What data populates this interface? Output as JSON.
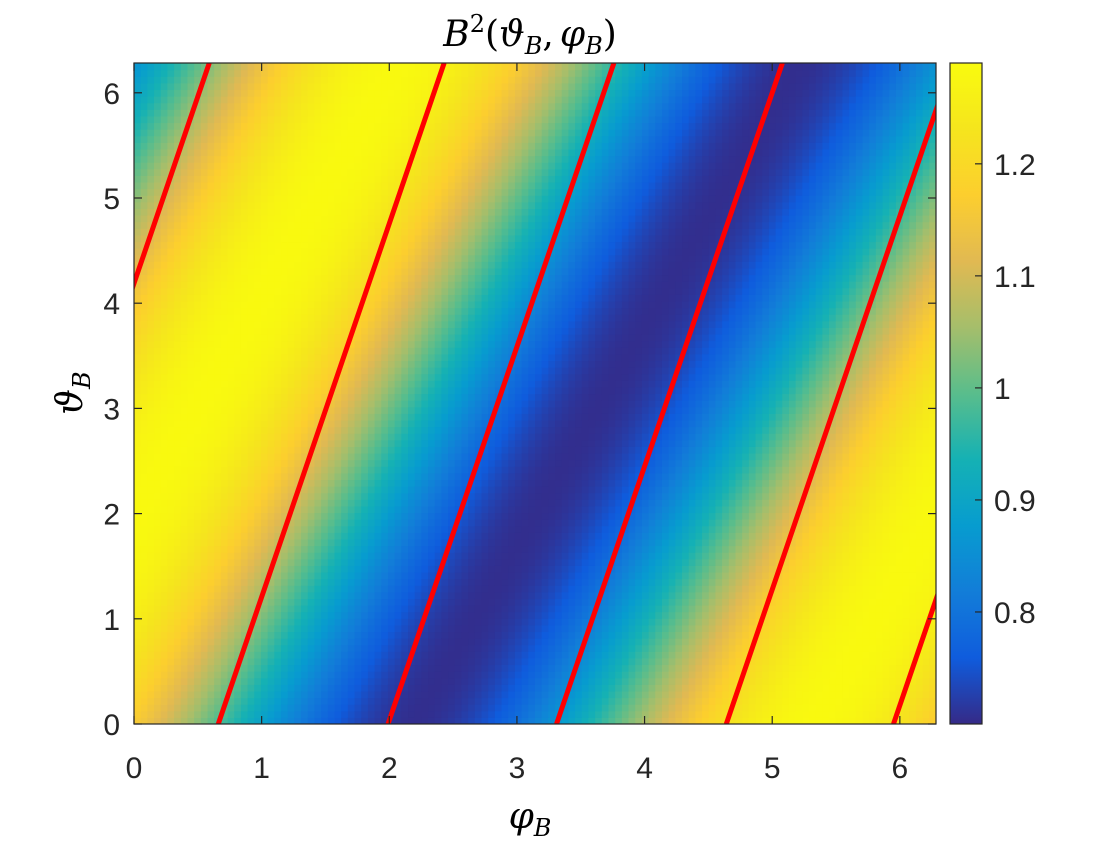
{
  "chart_data": {
    "type": "heatmap",
    "title": {
      "base": "B",
      "sup": "2",
      "open": "(",
      "arg1": "ϑ",
      "arg1_sub": "B",
      "sep": ",",
      "arg2": "φ",
      "arg2_sub": "B",
      "close": ")"
    },
    "xlabel": {
      "symbol": "φ",
      "sub": "B"
    },
    "ylabel": {
      "symbol": "ϑ",
      "sub": "B"
    },
    "xlim": [
      0,
      6.2832
    ],
    "ylim": [
      0,
      6.2832
    ],
    "xticks": [
      "0",
      "1",
      "2",
      "3",
      "4",
      "5",
      "6"
    ],
    "yticks": [
      "0",
      "1",
      "2",
      "3",
      "4",
      "5",
      "6"
    ],
    "colorbar": {
      "range": [
        0.7,
        1.29
      ],
      "ticks": [
        "0.8",
        "0.9",
        "1",
        "1.1",
        "1.2"
      ],
      "colormap": "parula"
    },
    "field": {
      "mean": 0.995,
      "amplitude": 0.29,
      "x_coefficient": 1,
      "y_coefficient": -0.48,
      "phase": 0.95
    },
    "line_series": {
      "color": "#ff0000",
      "slope": 3.55,
      "x_intercepts": [
        -1.18,
        0.66,
        1.99,
        3.31,
        4.64,
        5.95
      ]
    },
    "grid": false
  }
}
